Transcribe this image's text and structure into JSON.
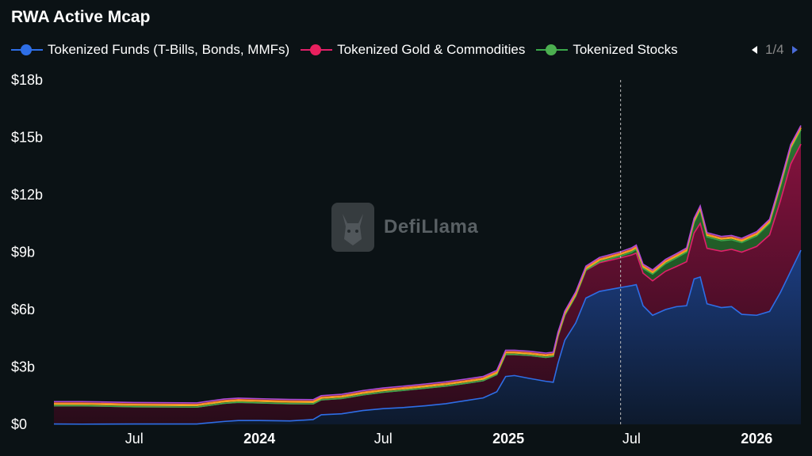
{
  "chart_data": {
    "type": "area",
    "title": "RWA Active Mcap",
    "x_ticks": [
      {
        "label": "Jul",
        "date": "2023-07-01",
        "bold": false
      },
      {
        "label": "2024",
        "date": "2024-01-01",
        "bold": true
      },
      {
        "label": "Jul",
        "date": "2024-07-01",
        "bold": false
      },
      {
        "label": "2025",
        "date": "2025-01-01",
        "bold": true
      },
      {
        "label": "Jul",
        "date": "2025-07-01",
        "bold": false
      },
      {
        "label": "2026",
        "date": "2026-01-01",
        "bold": true
      }
    ],
    "y_ticks": [
      {
        "label": "$0",
        "value": 0
      },
      {
        "label": "$3b",
        "value": 3
      },
      {
        "label": "$6b",
        "value": 6
      },
      {
        "label": "$9b",
        "value": 9
      },
      {
        "label": "$12b",
        "value": 12
      },
      {
        "label": "$15b",
        "value": 15
      },
      {
        "label": "$18b",
        "value": 18
      }
    ],
    "ylim": [
      0,
      18
    ],
    "xlim": [
      "2023-03-05",
      "2026-03-07"
    ],
    "y_unit": "billions USD",
    "legend_position": "top",
    "legend_page": "1/4",
    "hover_marker_date": "2025-06-15",
    "series": [
      {
        "name": "Tokenized Funds (T-Bills, Bonds, MMFs)",
        "color": "#2e6ee6",
        "dot_color": "#2e6ee6",
        "values": [
          [
            "2023-03-05",
            0.02
          ],
          [
            "2023-04-15",
            0.01
          ],
          [
            "2023-07-01",
            0.02
          ],
          [
            "2023-10-01",
            0.02
          ],
          [
            "2023-11-10",
            0.15
          ],
          [
            "2023-12-01",
            0.2
          ],
          [
            "2024-01-01",
            0.2
          ],
          [
            "2024-02-15",
            0.18
          ],
          [
            "2024-03-20",
            0.25
          ],
          [
            "2024-04-01",
            0.5
          ],
          [
            "2024-05-01",
            0.55
          ],
          [
            "2024-06-01",
            0.72
          ],
          [
            "2024-07-01",
            0.82
          ],
          [
            "2024-08-01",
            0.88
          ],
          [
            "2024-09-01",
            0.97
          ],
          [
            "2024-10-01",
            1.08
          ],
          [
            "2024-11-01",
            1.25
          ],
          [
            "2024-11-25",
            1.38
          ],
          [
            "2024-12-15",
            1.7
          ],
          [
            "2024-12-28",
            2.5
          ],
          [
            "2025-01-10",
            2.55
          ],
          [
            "2025-02-01",
            2.4
          ],
          [
            "2025-02-25",
            2.25
          ],
          [
            "2025-03-08",
            2.2
          ],
          [
            "2025-03-15",
            3.2
          ],
          [
            "2025-03-25",
            4.4
          ],
          [
            "2025-04-10",
            5.3
          ],
          [
            "2025-04-25",
            6.6
          ],
          [
            "2025-05-15",
            6.95
          ],
          [
            "2025-06-15",
            7.15
          ],
          [
            "2025-07-01",
            7.25
          ],
          [
            "2025-07-08",
            7.3
          ],
          [
            "2025-07-18",
            6.2
          ],
          [
            "2025-08-01",
            5.7
          ],
          [
            "2025-08-20",
            6.0
          ],
          [
            "2025-09-05",
            6.15
          ],
          [
            "2025-09-20",
            6.2
          ],
          [
            "2025-10-01",
            7.6
          ],
          [
            "2025-10-10",
            7.7
          ],
          [
            "2025-10-20",
            6.3
          ],
          [
            "2025-11-10",
            6.1
          ],
          [
            "2025-11-25",
            6.15
          ],
          [
            "2025-12-10",
            5.75
          ],
          [
            "2026-01-01",
            5.7
          ],
          [
            "2026-01-20",
            5.9
          ],
          [
            "2026-02-05",
            6.9
          ],
          [
            "2026-02-20",
            8.0
          ],
          [
            "2026-03-07",
            9.1
          ]
        ]
      },
      {
        "name": "Tokenized Gold & Commodities",
        "color": "#e0206a",
        "dot_color": "#e8205e",
        "values": [
          [
            "2023-03-05",
            0.95
          ],
          [
            "2023-04-15",
            0.96
          ],
          [
            "2023-07-01",
            0.9
          ],
          [
            "2023-10-01",
            0.88
          ],
          [
            "2023-11-10",
            0.95
          ],
          [
            "2023-12-01",
            0.95
          ],
          [
            "2024-01-01",
            0.92
          ],
          [
            "2024-02-15",
            0.9
          ],
          [
            "2024-03-20",
            0.82
          ],
          [
            "2024-04-01",
            0.78
          ],
          [
            "2024-05-01",
            0.8
          ],
          [
            "2024-06-01",
            0.82
          ],
          [
            "2024-07-01",
            0.86
          ],
          [
            "2024-08-01",
            0.9
          ],
          [
            "2024-09-01",
            0.92
          ],
          [
            "2024-10-01",
            0.92
          ],
          [
            "2024-11-01",
            0.9
          ],
          [
            "2024-11-25",
            0.9
          ],
          [
            "2024-12-15",
            0.9
          ],
          [
            "2024-12-28",
            1.15
          ],
          [
            "2025-01-10",
            1.1
          ],
          [
            "2025-02-01",
            1.2
          ],
          [
            "2025-02-25",
            1.25
          ],
          [
            "2025-03-08",
            1.35
          ],
          [
            "2025-03-15",
            1.4
          ],
          [
            "2025-03-25",
            1.3
          ],
          [
            "2025-04-10",
            1.4
          ],
          [
            "2025-04-25",
            1.45
          ],
          [
            "2025-05-15",
            1.5
          ],
          [
            "2025-06-15",
            1.55
          ],
          [
            "2025-07-01",
            1.6
          ],
          [
            "2025-07-08",
            1.65
          ],
          [
            "2025-07-18",
            1.7
          ],
          [
            "2025-08-01",
            1.8
          ],
          [
            "2025-08-20",
            2.0
          ],
          [
            "2025-09-05",
            2.1
          ],
          [
            "2025-09-20",
            2.3
          ],
          [
            "2025-10-01",
            2.4
          ],
          [
            "2025-10-10",
            2.8
          ],
          [
            "2025-10-20",
            2.9
          ],
          [
            "2025-11-10",
            2.95
          ],
          [
            "2025-11-25",
            3.0
          ],
          [
            "2025-12-10",
            3.25
          ],
          [
            "2026-01-01",
            3.6
          ],
          [
            "2026-01-20",
            4.0
          ],
          [
            "2026-02-05",
            4.8
          ],
          [
            "2026-02-20",
            5.6
          ],
          [
            "2026-03-07",
            5.55
          ]
        ]
      },
      {
        "name": "Tokenized Stocks",
        "color": "#3aa84a",
        "dot_color": "#4caf50",
        "values": [
          [
            "2023-03-05",
            0
          ],
          [
            "2023-04-15",
            0
          ],
          [
            "2023-07-01",
            0
          ],
          [
            "2023-10-01",
            0
          ],
          [
            "2023-11-10",
            0
          ],
          [
            "2023-12-01",
            0
          ],
          [
            "2024-01-01",
            0
          ],
          [
            "2024-02-15",
            0
          ],
          [
            "2024-03-20",
            0
          ],
          [
            "2024-04-01",
            0
          ],
          [
            "2024-05-01",
            0
          ],
          [
            "2024-06-01",
            0
          ],
          [
            "2024-07-01",
            0
          ],
          [
            "2024-08-01",
            0
          ],
          [
            "2024-09-01",
            0
          ],
          [
            "2024-10-01",
            0
          ],
          [
            "2024-11-01",
            0
          ],
          [
            "2024-11-25",
            0
          ],
          [
            "2024-12-15",
            0
          ],
          [
            "2024-12-28",
            0
          ],
          [
            "2025-01-10",
            0
          ],
          [
            "2025-02-01",
            0
          ],
          [
            "2025-02-25",
            0
          ],
          [
            "2025-03-08",
            0
          ],
          [
            "2025-03-15",
            0
          ],
          [
            "2025-03-25",
            0
          ],
          [
            "2025-04-10",
            0
          ],
          [
            "2025-04-25",
            0
          ],
          [
            "2025-05-15",
            0.05
          ],
          [
            "2025-06-15",
            0.1
          ],
          [
            "2025-07-01",
            0.15
          ],
          [
            "2025-07-08",
            0.2
          ],
          [
            "2025-07-18",
            0.25
          ],
          [
            "2025-08-01",
            0.35
          ],
          [
            "2025-08-20",
            0.4
          ],
          [
            "2025-09-05",
            0.45
          ],
          [
            "2025-09-20",
            0.5
          ],
          [
            "2025-10-01",
            0.55
          ],
          [
            "2025-10-10",
            0.7
          ],
          [
            "2025-10-20",
            0.6
          ],
          [
            "2025-11-10",
            0.55
          ],
          [
            "2025-11-25",
            0.5
          ],
          [
            "2025-12-10",
            0.5
          ],
          [
            "2026-01-01",
            0.55
          ],
          [
            "2026-01-20",
            0.6
          ],
          [
            "2026-02-05",
            0.75
          ],
          [
            "2026-02-20",
            0.8
          ],
          [
            "2026-03-07",
            0.75
          ]
        ]
      }
    ],
    "extra_bands_unlisted": [
      {
        "color": "#e8b820"
      },
      {
        "color": "#ff7a30"
      },
      {
        "color": "#b04ad8"
      }
    ]
  },
  "watermark": {
    "text": "DefiLlama"
  }
}
